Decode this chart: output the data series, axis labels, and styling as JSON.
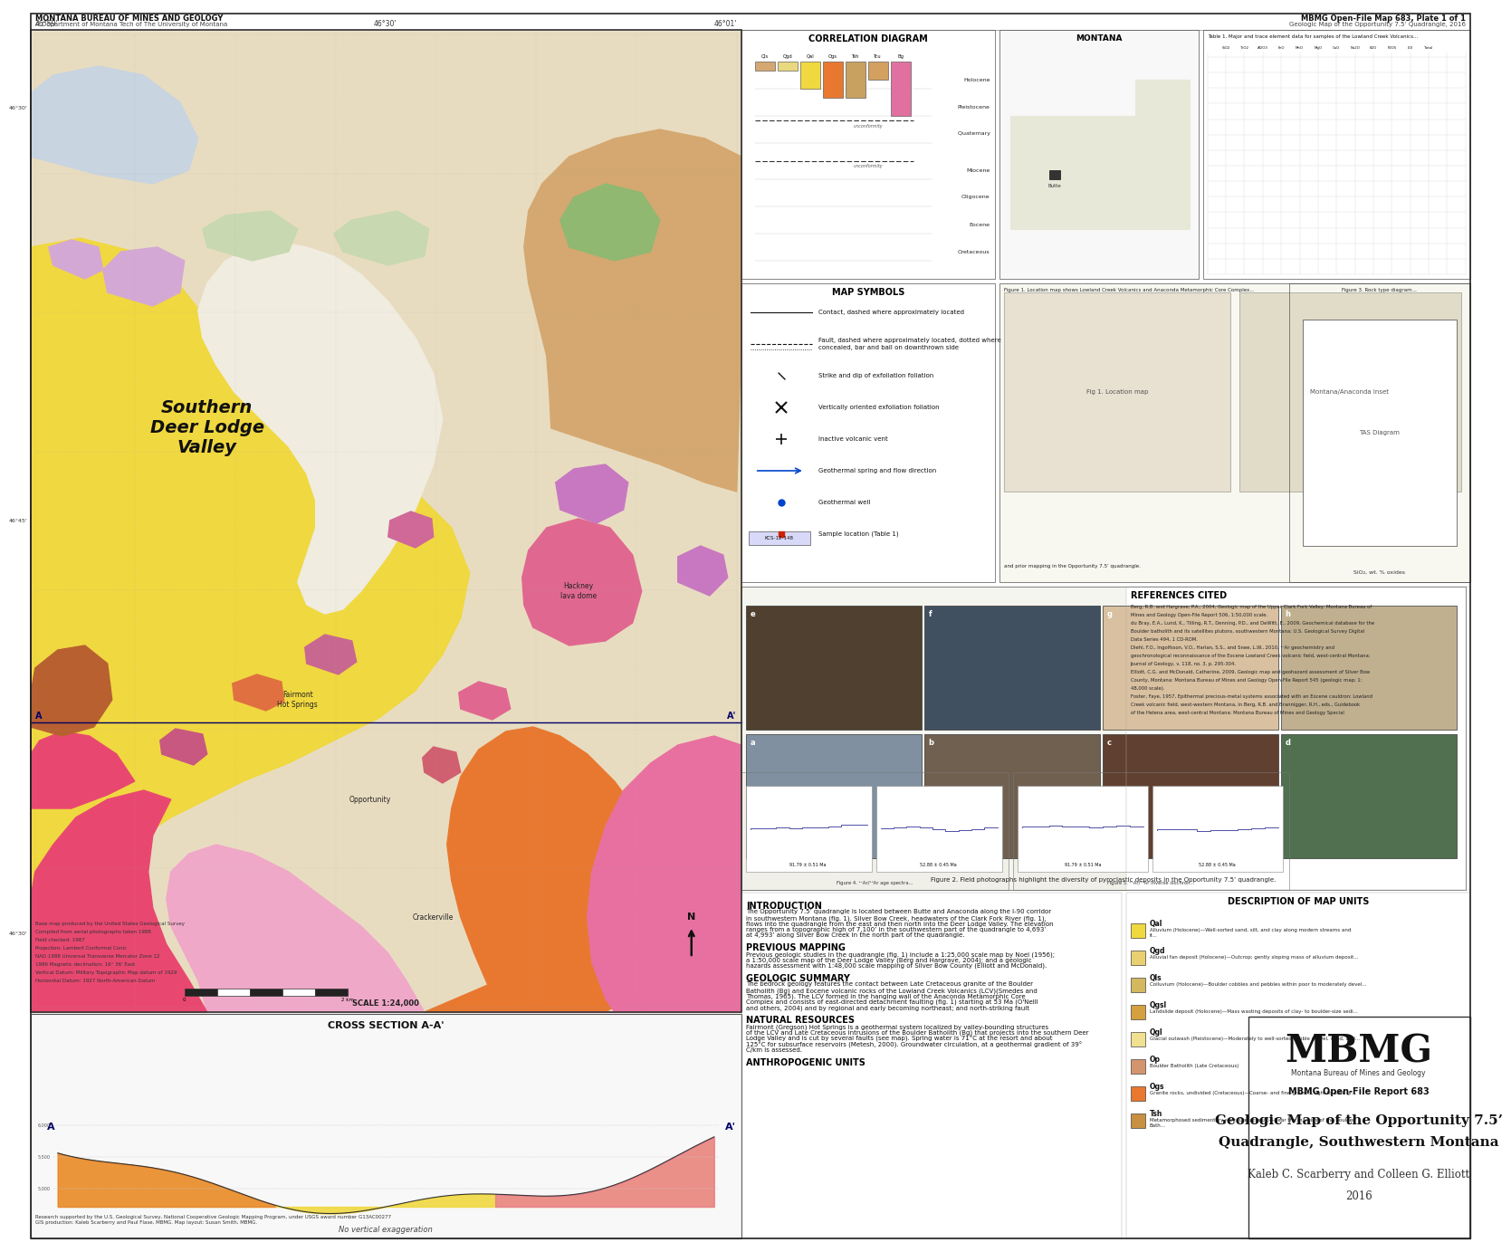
{
  "title_main": "Geologic Map of the Opportunity 7.5’",
  "title_sub": "Quadrangle, Southwestern Montana",
  "authors": "Kaleb C. Scarberry and Colleen G. Elliott",
  "year": "2016",
  "report": "MBMG Open-File Report 683",
  "header_left": "MONTANA BUREAU OF MINES AND GEOLOGY",
  "header_left2": "A Department of Montana Tech of The University of Montana",
  "header_right": "MBMG Open-File Map 683, Plate 1 of 1",
  "header_right2": "Geologic Map of the Opportunity 7.5’ Quadrangle, 2016",
  "background_color": "#ffffff",
  "fig_width": 16.0,
  "fig_height": 13.63,
  "map_yellow": "#f0d840",
  "map_light_yellow": "#f5f0c0",
  "map_orange": "#e87830",
  "map_tan": "#d4a870",
  "map_pink": "#e870a0",
  "map_light_pink": "#f0a8c8",
  "map_purple": "#c878c0",
  "map_light_purple": "#d4a8d4",
  "map_red_pink": "#e84870",
  "map_brown": "#b86030",
  "map_gray_blue": "#c8d4e0",
  "map_light_green": "#c8d8b0",
  "map_medium_green": "#90b870",
  "map_olive": "#a8a060",
  "map_beige": "#e8dcc0",
  "map_white_valley": "#f0ece0",
  "cross_bg": "#f8f8f8",
  "corr_diagram_title": "CORRELATION DIAGRAM",
  "map_symbols_title": "MAP SYMBOLS"
}
